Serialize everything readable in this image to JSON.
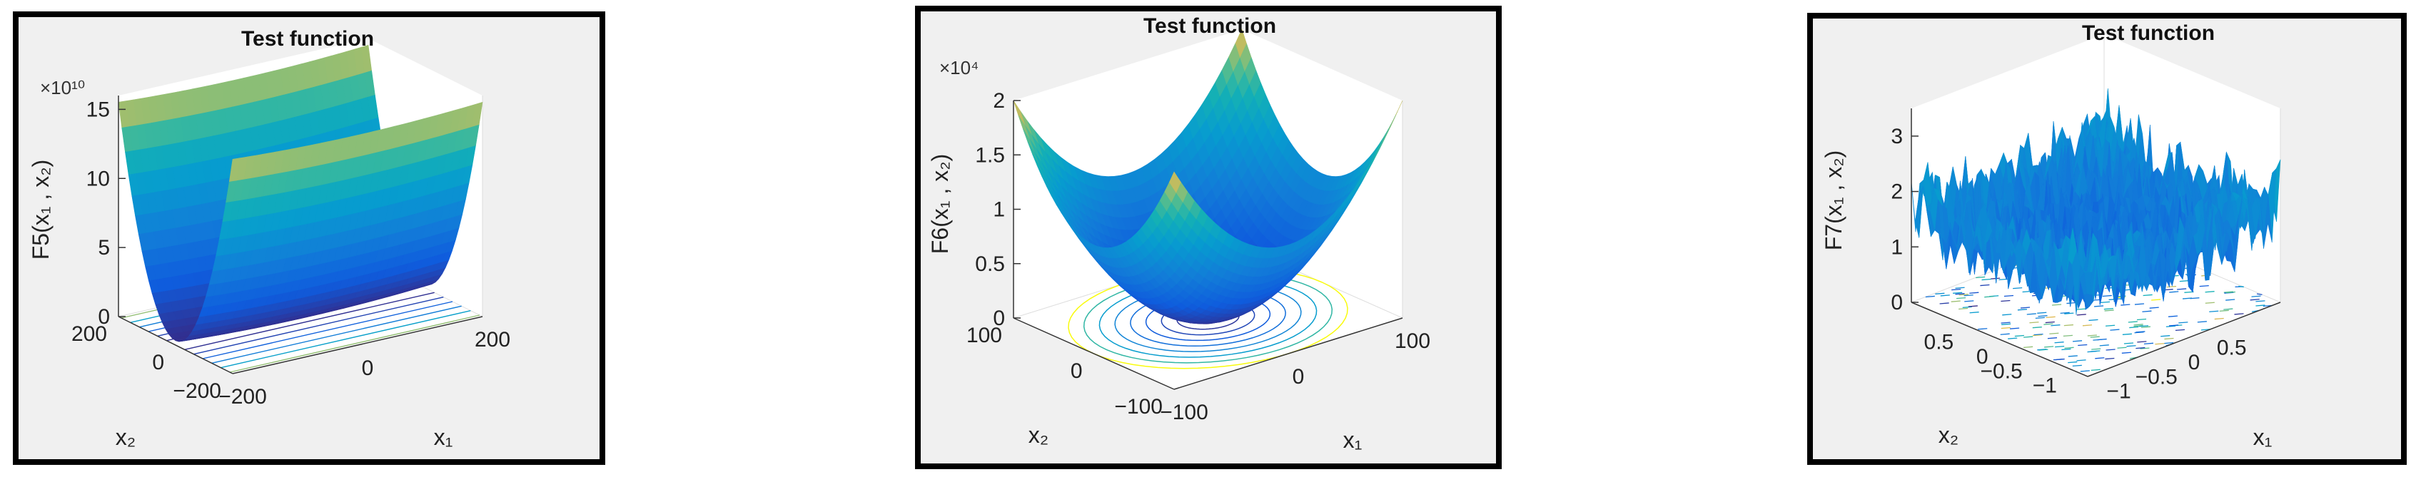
{
  "chart_data": [
    {
      "type": "surface",
      "title": "Test function",
      "zlabel": "F5(x₁ , x₂)",
      "xlabel": "x₁",
      "ylabel": "x₂",
      "z_multiplier": "×10¹⁰",
      "x_ticks": [
        "−200",
        "0",
        "200"
      ],
      "y_ticks": [
        "−200",
        "0",
        "200"
      ],
      "z_ticks": [
        "0",
        "5",
        "10",
        "15"
      ],
      "x_range": [
        -200,
        200
      ],
      "y_range": [
        -200,
        200
      ],
      "z_range": [
        0,
        160000000000.0
      ],
      "shape": "valley",
      "contour": true
    },
    {
      "type": "surface",
      "title": "Test function",
      "zlabel": "F6(x₁ , x₂)",
      "xlabel": "x₁",
      "ylabel": "x₂",
      "z_multiplier": "×10⁴",
      "x_ticks": [
        "−100",
        "0",
        "100"
      ],
      "y_ticks": [
        "−100",
        "0",
        "100"
      ],
      "z_ticks": [
        "0",
        "0.5",
        "1",
        "1.5",
        "2"
      ],
      "x_range": [
        -100,
        100
      ],
      "y_range": [
        -100,
        100
      ],
      "z_range": [
        0,
        20000
      ],
      "shape": "bowl",
      "contour": true
    },
    {
      "type": "surface",
      "title": "Test function",
      "zlabel": "F7(x₁ , x₂)",
      "xlabel": "x₁",
      "ylabel": "x₂",
      "z_multiplier": "",
      "x_ticks": [
        "−1",
        "−0.5",
        "0",
        "0.5"
      ],
      "y_ticks": [
        "−1",
        "−0.5",
        "0",
        "0.5"
      ],
      "z_ticks": [
        "0",
        "1",
        "2",
        "3"
      ],
      "x_range": [
        -1.28,
        1.28
      ],
      "y_range": [
        -1.28,
        1.28
      ],
      "z_range": [
        0,
        3.5
      ],
      "shape": "noisy",
      "contour": true
    }
  ]
}
